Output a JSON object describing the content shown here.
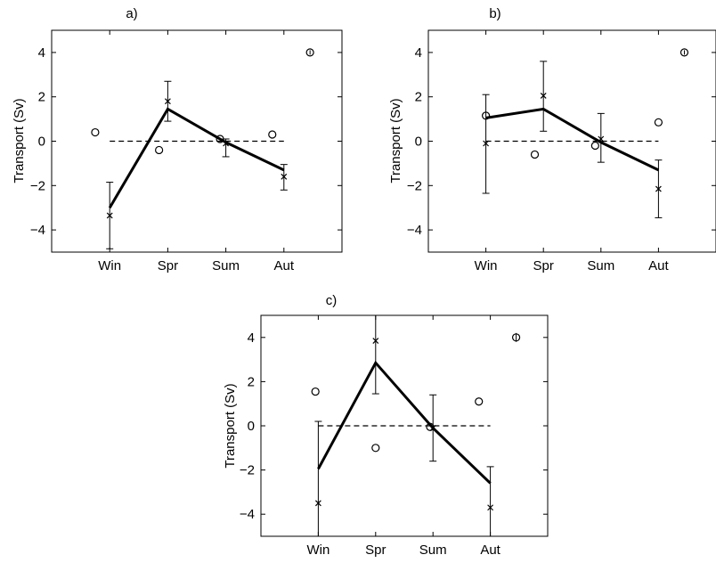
{
  "chart_data": [
    {
      "panel": "a)",
      "type": "line",
      "categories": [
        "Win",
        "Spr",
        "Sum",
        "Aut"
      ],
      "ylabel": "Transport (Sv)",
      "xlabel": "",
      "ylim": [
        -5,
        5
      ],
      "yticks": [
        -4,
        -2,
        0,
        2,
        4
      ],
      "series": [
        {
          "style": "solid-thick",
          "values": [
            -3.0,
            1.45,
            -0.05,
            -1.3
          ]
        },
        {
          "style": "dashed",
          "values": [
            0,
            0,
            0,
            0
          ]
        }
      ],
      "errorbars": [
        {
          "category": "Win",
          "center": -3.35,
          "low": -4.85,
          "high": -1.85
        },
        {
          "category": "Spr",
          "center": 1.8,
          "low": 0.9,
          "high": 2.7
        },
        {
          "category": "Sum",
          "center": -0.1,
          "low": -0.7,
          "high": 0.1
        },
        {
          "category": "Aut",
          "center": -1.6,
          "low": -2.2,
          "high": -1.05
        }
      ],
      "circles": [
        {
          "x": 0.75,
          "y": 0.4
        },
        {
          "x": 1.85,
          "y": -0.4
        },
        {
          "x": 2.9,
          "y": 0.1
        },
        {
          "x": 3.8,
          "y": 0.3
        }
      ],
      "reference_marker": {
        "x": 4.45,
        "y": 4.0,
        "low": 3.9,
        "high": 4.1
      }
    },
    {
      "panel": "b)",
      "type": "line",
      "categories": [
        "Win",
        "Spr",
        "Sum",
        "Aut"
      ],
      "ylabel": "Transport (Sv)",
      "xlabel": "",
      "ylim": [
        -5,
        5
      ],
      "yticks": [
        -4,
        -2,
        0,
        2,
        4
      ],
      "series": [
        {
          "style": "solid-thick",
          "values": [
            1.05,
            1.45,
            -0.05,
            -1.3
          ]
        },
        {
          "style": "dashed",
          "values": [
            0,
            0,
            0,
            0
          ]
        }
      ],
      "errorbars": [
        {
          "category": "Win",
          "center": -0.1,
          "low": -2.35,
          "high": 2.1
        },
        {
          "category": "Spr",
          "center": 2.05,
          "low": 0.45,
          "high": 3.6
        },
        {
          "category": "Sum",
          "center": 0.1,
          "low": -0.95,
          "high": 1.25
        },
        {
          "category": "Aut",
          "center": -2.15,
          "low": -3.45,
          "high": -0.85
        }
      ],
      "circles": [
        {
          "x": 1.0,
          "y": 1.15
        },
        {
          "x": 1.85,
          "y": -0.6
        },
        {
          "x": 2.9,
          "y": -0.2
        },
        {
          "x": 4.0,
          "y": 0.85
        }
      ],
      "reference_marker": {
        "x": 4.45,
        "y": 4.0,
        "low": 3.9,
        "high": 4.1
      }
    },
    {
      "panel": "c)",
      "type": "line",
      "categories": [
        "Win",
        "Spr",
        "Sum",
        "Aut"
      ],
      "ylabel": "Transport (Sv)",
      "xlabel": "",
      "ylim": [
        -5,
        5
      ],
      "yticks": [
        -4,
        -2,
        0,
        2,
        4
      ],
      "series": [
        {
          "style": "solid-thick",
          "values": [
            -1.95,
            2.85,
            -0.1,
            -2.6
          ]
        },
        {
          "style": "dashed",
          "values": [
            0,
            0,
            0,
            0
          ]
        }
      ],
      "errorbars": [
        {
          "category": "Win",
          "center": -3.5,
          "low": -5.0,
          "high": 0.2
        },
        {
          "category": "Spr",
          "center": 3.85,
          "low": 1.45,
          "high": 5.0
        },
        {
          "category": "Sum",
          "center": -0.1,
          "low": -1.6,
          "high": 1.4
        },
        {
          "category": "Aut",
          "center": -3.7,
          "low": -5.0,
          "high": -1.85
        }
      ],
      "circles": [
        {
          "x": 0.95,
          "y": 1.55
        },
        {
          "x": 2.0,
          "y": -1.0
        },
        {
          "x": 2.95,
          "y": -0.05
        },
        {
          "x": 3.8,
          "y": 1.1
        }
      ],
      "reference_marker": {
        "x": 4.45,
        "y": 4.0,
        "low": 3.8,
        "high": 4.2
      }
    }
  ]
}
